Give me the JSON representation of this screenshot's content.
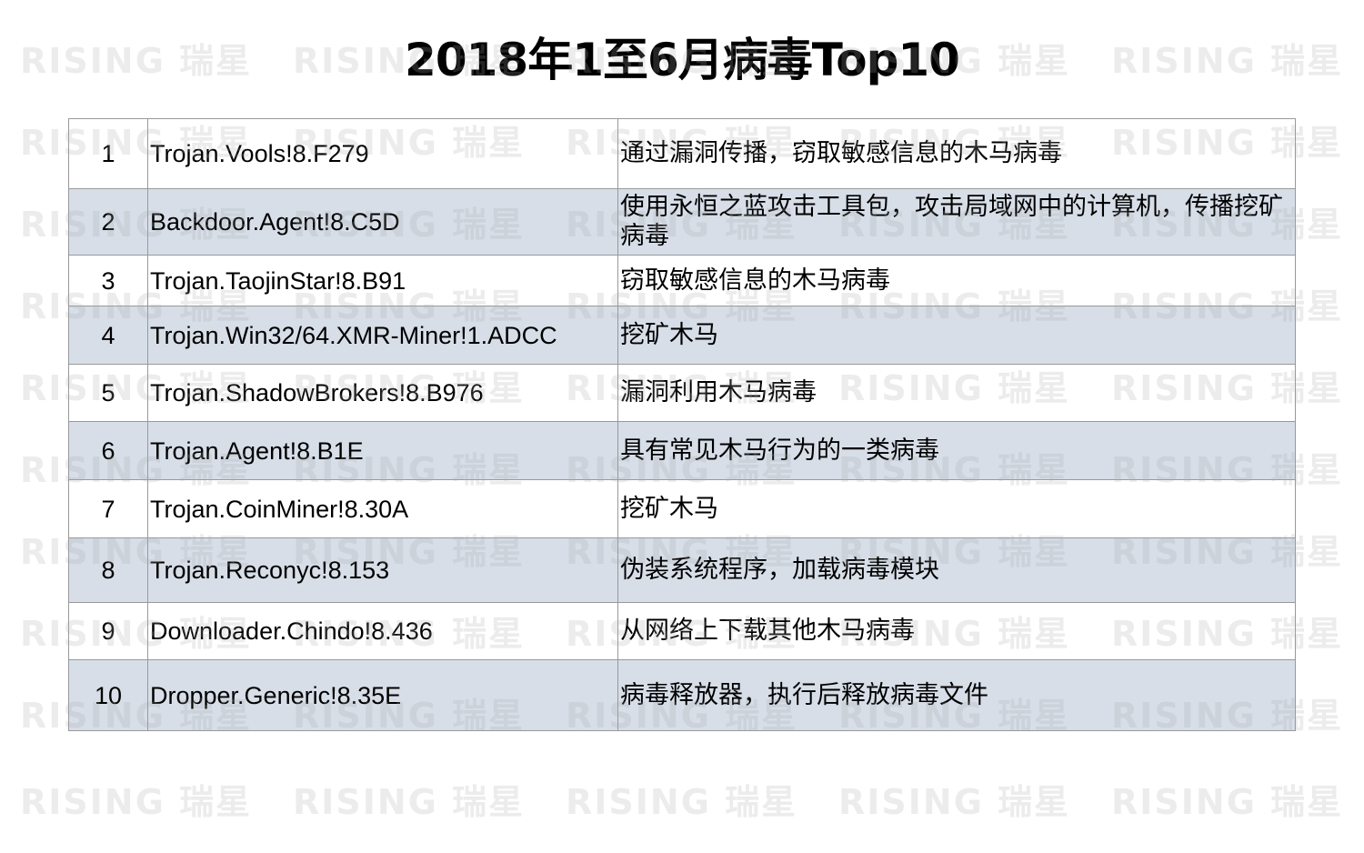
{
  "title": "2018年1至6月病毒Top10",
  "watermark": "RISING 瑞星",
  "rows": [
    {
      "rank": "1",
      "name": "Trojan.Vools!8.F279",
      "desc": "通过漏洞传播，窃取敏感信息的木马病毒"
    },
    {
      "rank": "2",
      "name": "Backdoor.Agent!8.C5D",
      "desc": "使用永恒之蓝攻击工具包，攻击局域网中的计算机，传播挖矿病毒"
    },
    {
      "rank": "3",
      "name": "Trojan.TaojinStar!8.B91",
      "desc": "窃取敏感信息的木马病毒"
    },
    {
      "rank": "4",
      "name": "Trojan.Win32/64.XMR-Miner!1.ADCC",
      "desc": "挖矿木马"
    },
    {
      "rank": "5",
      "name": "Trojan.ShadowBrokers!8.B976",
      "desc": "漏洞利用木马病毒"
    },
    {
      "rank": "6",
      "name": "Trojan.Agent!8.B1E",
      "desc": "具有常见木马行为的一类病毒"
    },
    {
      "rank": "7",
      "name": "Trojan.CoinMiner!8.30A",
      "desc": "挖矿木马"
    },
    {
      "rank": "8",
      "name": "Trojan.Reconyc!8.153",
      "desc": "伪装系统程序，加载病毒模块"
    },
    {
      "rank": "9",
      "name": "Downloader.Chindo!8.436",
      "desc": "从网络上下载其他木马病毒"
    },
    {
      "rank": "10",
      "name": "Dropper.Generic!8.35E",
      "desc": "病毒释放器，执行后释放病毒文件"
    }
  ],
  "colors": {
    "alt_row": "#d7dee8",
    "border": "#999999"
  }
}
